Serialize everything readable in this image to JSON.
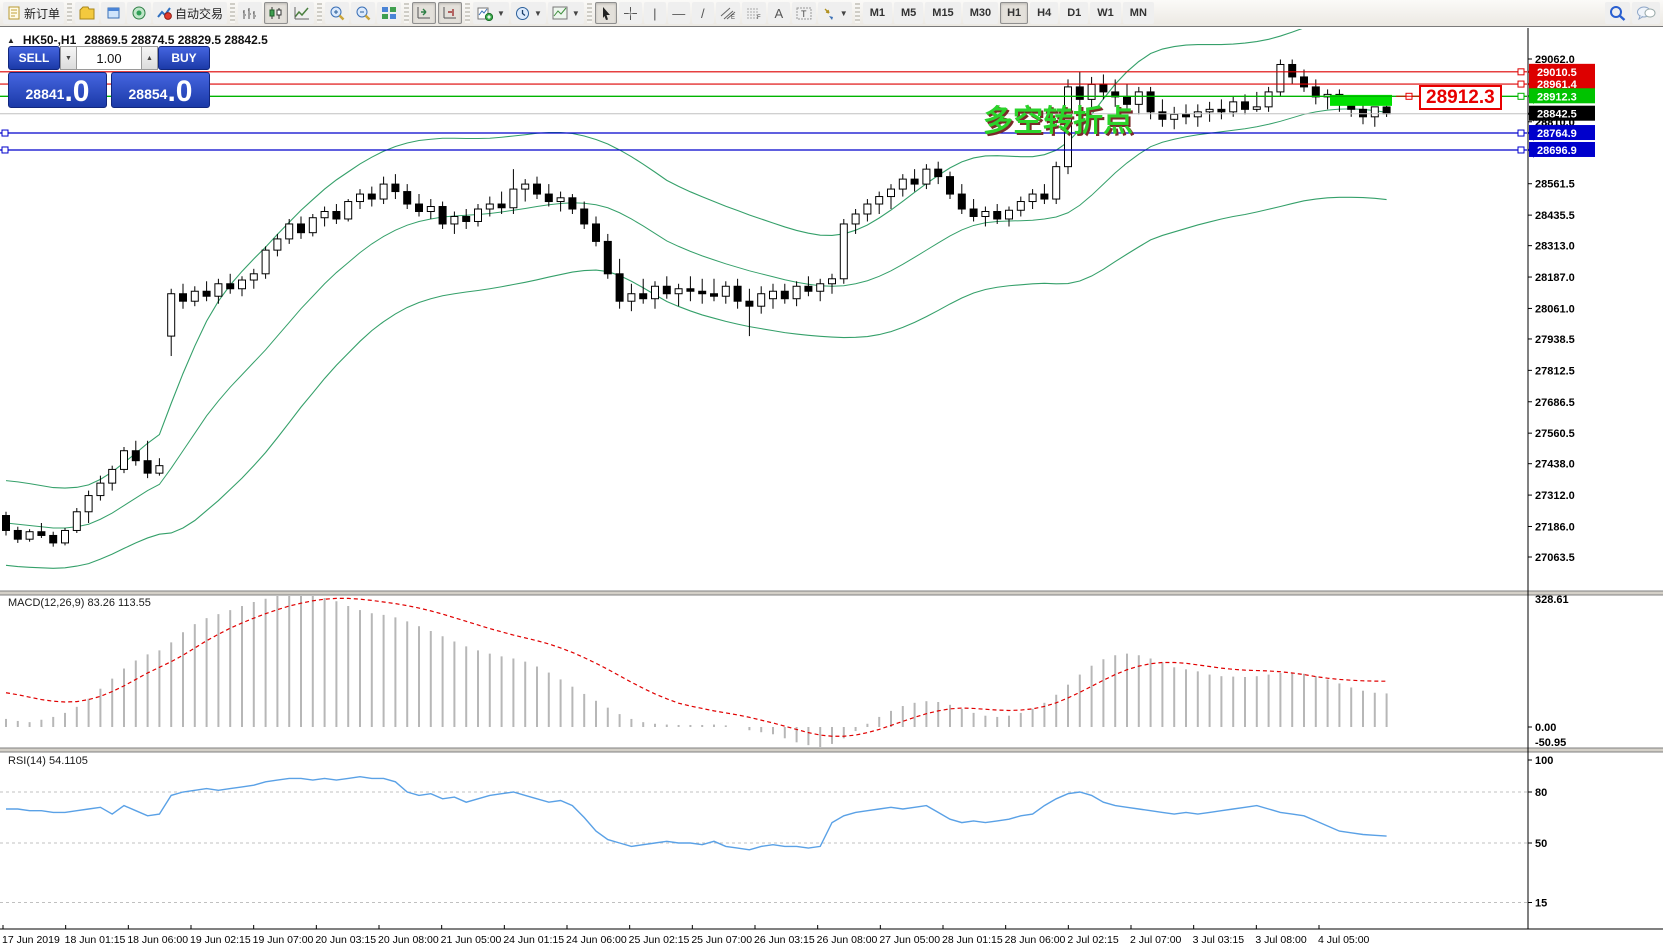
{
  "toolbar": {
    "new_order_label": "新订单",
    "auto_trading_label": "自动交易",
    "text_tool_label": "A",
    "label_tool_label": "T",
    "timeframes": [
      "M1",
      "M5",
      "M15",
      "M30",
      "H1",
      "H4",
      "D1",
      "W1",
      "MN"
    ],
    "active_timeframe": "H1"
  },
  "chart": {
    "collapse_arrow": "▲",
    "symbol_period": "HK50-,H1",
    "ohlc": "28869.5 28874.5 28829.5 28842.5"
  },
  "one_click": {
    "sell_label": "SELL",
    "buy_label": "BUY",
    "volume": "1.00",
    "sell_price_main": "28841",
    "sell_price_big": ".0",
    "buy_price_main": "28854",
    "buy_price_big": ".0"
  },
  "annotations": {
    "turning_point_text": "多空转折点",
    "price_callout": "28912.3"
  },
  "macd_panel": {
    "label": "MACD(12,26,9) 83.26 113.55",
    "axis_max": "328.61",
    "axis_zero": "0.00",
    "axis_min": "-50.95"
  },
  "rsi_panel": {
    "label": "RSI(14) 54.1105",
    "levels": [
      "100",
      "80",
      "50",
      "15"
    ],
    "level_values": [
      100,
      80,
      50,
      15
    ]
  },
  "price_axis": {
    "ticks": [
      29062.0,
      28810.0,
      28561.5,
      28435.5,
      28313.0,
      28187.0,
      28061.0,
      27938.5,
      27812.5,
      27686.5,
      27560.5,
      27438.0,
      27312.0,
      27186.0,
      27063.5
    ],
    "flags": [
      {
        "price": 29010.5,
        "label": "29010.5",
        "bg": "#dd0000"
      },
      {
        "price": 28961.4,
        "label": "28961.4",
        "bg": "#dd0000"
      },
      {
        "price": 28912.3,
        "label": "28912.3",
        "bg": "#00c300"
      },
      {
        "price": 28842.5,
        "label": "28842.5",
        "bg": "#000000"
      },
      {
        "price": 28764.9,
        "label": "28764.9",
        "bg": "#0000cc"
      },
      {
        "price": 28696.9,
        "label": "28696.9",
        "bg": "#0000cc"
      }
    ],
    "extra_tick": {
      "price": 28810.0,
      "label": "28810.0"
    }
  },
  "hlines": [
    {
      "price": 29010.5,
      "color": "#dd0000",
      "width": 1.2,
      "handles": "right"
    },
    {
      "price": 28961.4,
      "color": "#dd0000",
      "width": 1.2,
      "handles": "right"
    },
    {
      "price": 28912.3,
      "color": "#00b400",
      "width": 1.4,
      "handles": "right"
    },
    {
      "price": 28842.5,
      "color": "#c0c0c0",
      "width": 1,
      "handles": "none"
    },
    {
      "price": 28764.9,
      "color": "#0000cc",
      "width": 1.2,
      "handles": "both"
    },
    {
      "price": 28696.9,
      "color": "#0000cc",
      "width": 1.2,
      "handles": "both"
    }
  ],
  "time_axis": {
    "labels": [
      "17 Jun 2019",
      "18 Jun 01:15",
      "18 Jun 06:00",
      "19 Jun 02:15",
      "19 Jun 07:00",
      "20 Jun 03:15",
      "20 Jun 08:00",
      "21 Jun 05:00",
      "24 Jun 01:15",
      "24 Jun 06:00",
      "25 Jun 02:15",
      "25 Jun 07:00",
      "26 Jun 03:15",
      "26 Jun 08:00",
      "27 Jun 05:00",
      "28 Jun 01:15",
      "28 Jun 06:00",
      "2 Jul 02:15",
      "2 Jul 07:00",
      "3 Jul 03:15",
      "3 Jul 08:00",
      "4 Jul 05:00"
    ]
  },
  "chart_data": {
    "type": "candlestick",
    "symbol": "HK50-",
    "timeframe": "H1",
    "price_range": [
      27020,
      29180
    ],
    "candles": [
      [
        27230,
        27245,
        27150,
        27170
      ],
      [
        27170,
        27185,
        27120,
        27135
      ],
      [
        27135,
        27175,
        27125,
        27165
      ],
      [
        27165,
        27200,
        27140,
        27150
      ],
      [
        27150,
        27165,
        27105,
        27120
      ],
      [
        27120,
        27180,
        27110,
        27170
      ],
      [
        27170,
        27260,
        27160,
        27245
      ],
      [
        27245,
        27330,
        27200,
        27310
      ],
      [
        27310,
        27390,
        27290,
        27360
      ],
      [
        27360,
        27430,
        27330,
        27415
      ],
      [
        27415,
        27505,
        27400,
        27490
      ],
      [
        27490,
        27530,
        27430,
        27450
      ],
      [
        27450,
        27530,
        27380,
        27400
      ],
      [
        27400,
        27460,
        27390,
        27430
      ],
      [
        27950,
        28140,
        27870,
        28120
      ],
      [
        28120,
        28160,
        28060,
        28090
      ],
      [
        28090,
        28150,
        28070,
        28130
      ],
      [
        28130,
        28170,
        28090,
        28110
      ],
      [
        28110,
        28180,
        28080,
        28160
      ],
      [
        28160,
        28200,
        28120,
        28140
      ],
      [
        28140,
        28190,
        28110,
        28175
      ],
      [
        28175,
        28220,
        28140,
        28200
      ],
      [
        28200,
        28310,
        28180,
        28295
      ],
      [
        28295,
        28360,
        28270,
        28340
      ],
      [
        28340,
        28420,
        28320,
        28400
      ],
      [
        28400,
        28430,
        28340,
        28365
      ],
      [
        28365,
        28440,
        28350,
        28425
      ],
      [
        28425,
        28470,
        28390,
        28450
      ],
      [
        28450,
        28480,
        28400,
        28420
      ],
      [
        28420,
        28500,
        28410,
        28490
      ],
      [
        28490,
        28540,
        28460,
        28520
      ],
      [
        28520,
        28550,
        28470,
        28500
      ],
      [
        28500,
        28590,
        28480,
        28560
      ],
      [
        28560,
        28600,
        28500,
        28530
      ],
      [
        28530,
        28560,
        28460,
        28480
      ],
      [
        28480,
        28520,
        28430,
        28450
      ],
      [
        28450,
        28500,
        28420,
        28470
      ],
      [
        28470,
        28490,
        28380,
        28400
      ],
      [
        28400,
        28450,
        28360,
        28430
      ],
      [
        28430,
        28460,
        28380,
        28410
      ],
      [
        28410,
        28480,
        28390,
        28460
      ],
      [
        28460,
        28510,
        28430,
        28480
      ],
      [
        28480,
        28530,
        28440,
        28465
      ],
      [
        28465,
        28620,
        28440,
        28540
      ],
      [
        28540,
        28580,
        28490,
        28560
      ],
      [
        28560,
        28590,
        28500,
        28520
      ],
      [
        28520,
        28560,
        28470,
        28490
      ],
      [
        28490,
        28530,
        28450,
        28505
      ],
      [
        28505,
        28520,
        28440,
        28460
      ],
      [
        28460,
        28490,
        28380,
        28400
      ],
      [
        28400,
        28430,
        28310,
        28330
      ],
      [
        28330,
        28360,
        28180,
        28200
      ],
      [
        28200,
        28260,
        28060,
        28090
      ],
      [
        28090,
        28160,
        28050,
        28120
      ],
      [
        28120,
        28180,
        28080,
        28100
      ],
      [
        28100,
        28170,
        28060,
        28150
      ],
      [
        28150,
        28190,
        28100,
        28120
      ],
      [
        28120,
        28160,
        28070,
        28140
      ],
      [
        28140,
        28190,
        28090,
        28130
      ],
      [
        28130,
        28180,
        28080,
        28120
      ],
      [
        28120,
        28180,
        28090,
        28110
      ],
      [
        28110,
        28170,
        28080,
        28150
      ],
      [
        28150,
        28180,
        28060,
        28090
      ],
      [
        28090,
        28140,
        27950,
        28070
      ],
      [
        28070,
        28150,
        28040,
        28120
      ],
      [
        28100,
        28160,
        28060,
        28130
      ],
      [
        28130,
        28160,
        28080,
        28100
      ],
      [
        28100,
        28170,
        28070,
        28150
      ],
      [
        28150,
        28190,
        28110,
        28130
      ],
      [
        28130,
        28180,
        28090,
        28160
      ],
      [
        28160,
        28200,
        28120,
        28180
      ],
      [
        28180,
        28420,
        28160,
        28400
      ],
      [
        28400,
        28460,
        28360,
        28440
      ],
      [
        28440,
        28500,
        28410,
        28480
      ],
      [
        28480,
        28530,
        28440,
        28510
      ],
      [
        28510,
        28560,
        28460,
        28540
      ],
      [
        28540,
        28600,
        28510,
        28580
      ],
      [
        28580,
        28620,
        28530,
        28560
      ],
      [
        28560,
        28640,
        28540,
        28620
      ],
      [
        28620,
        28650,
        28560,
        28590
      ],
      [
        28590,
        28610,
        28500,
        28520
      ],
      [
        28520,
        28560,
        28440,
        28460
      ],
      [
        28460,
        28500,
        28410,
        28430
      ],
      [
        28430,
        28470,
        28390,
        28450
      ],
      [
        28450,
        28480,
        28400,
        28420
      ],
      [
        28420,
        28470,
        28390,
        28455
      ],
      [
        28455,
        28510,
        28430,
        28490
      ],
      [
        28490,
        28540,
        28460,
        28520
      ],
      [
        28520,
        28560,
        28480,
        28500
      ],
      [
        28500,
        28650,
        28480,
        28630
      ],
      [
        28630,
        28980,
        28600,
        28950
      ],
      [
        28950,
        29010,
        28850,
        28900
      ],
      [
        28900,
        28990,
        28860,
        28960
      ],
      [
        28960,
        29000,
        28900,
        28930
      ],
      [
        28930,
        28980,
        28870,
        28910
      ],
      [
        28910,
        28960,
        28850,
        28880
      ],
      [
        28880,
        28950,
        28840,
        28930
      ],
      [
        28930,
        28950,
        28820,
        28850
      ],
      [
        28850,
        28900,
        28790,
        28820
      ],
      [
        28820,
        28870,
        28780,
        28840
      ],
      [
        28840,
        28880,
        28800,
        28830
      ],
      [
        28830,
        28880,
        28790,
        28850
      ],
      [
        28850,
        28890,
        28810,
        28860
      ],
      [
        28860,
        28900,
        28820,
        28850
      ],
      [
        28850,
        28910,
        28830,
        28890
      ],
      [
        28890,
        28920,
        28840,
        28860
      ],
      [
        28860,
        28930,
        28850,
        28870
      ],
      [
        28870,
        28950,
        28850,
        28930
      ],
      [
        28930,
        29060,
        28910,
        29040
      ],
      [
        29040,
        29060,
        28960,
        28990
      ],
      [
        28990,
        29020,
        28930,
        28950
      ],
      [
        28950,
        28980,
        28880,
        28910
      ],
      [
        28910,
        28940,
        28860,
        28920
      ],
      [
        28920,
        28940,
        28850,
        28880
      ],
      [
        28880,
        28910,
        28830,
        28860
      ],
      [
        28860,
        28900,
        28800,
        28830
      ],
      [
        28830,
        28870,
        28790,
        28870
      ],
      [
        28869.5,
        28874.5,
        28829.5,
        28842.5
      ]
    ],
    "bb_mid": [
      27200,
      27195,
      27190,
      27185,
      27180,
      27180,
      27185,
      27195,
      27215,
      27240,
      27270,
      27300,
      27330,
      27355,
      27420,
      27490,
      27560,
      27630,
      27690,
      27745,
      27795,
      27845,
      27895,
      27950,
      28005,
      28060,
      28110,
      28160,
      28205,
      28245,
      28285,
      28320,
      28350,
      28375,
      28395,
      28410,
      28420,
      28428,
      28432,
      28435,
      28438,
      28442,
      28448,
      28455,
      28462,
      28470,
      28477,
      28482,
      28485,
      28483,
      28477,
      28465,
      28445,
      28420,
      28392,
      28362,
      28332,
      28310,
      28290,
      28272,
      28256,
      28240,
      28226,
      28212,
      28200,
      28188,
      28176,
      28166,
      28158,
      28152,
      28150,
      28152,
      28160,
      28172,
      28190,
      28212,
      28238,
      28266,
      28295,
      28324,
      28352,
      28376,
      28394,
      28405,
      28410,
      28412,
      28413,
      28415,
      28420,
      28428,
      28445,
      28475,
      28515,
      28560,
      28605,
      28645,
      28680,
      28710,
      28728,
      28740,
      28750,
      28758,
      28764,
      28770,
      28776,
      28782,
      28790,
      28800,
      28812,
      28826,
      28840,
      28850,
      28857,
      28861,
      28862,
      28860,
      28855,
      28848
    ],
    "bb_spread": [
      170,
      170,
      168,
      165,
      162,
      160,
      158,
      158,
      160,
      165,
      172,
      180,
      190,
      200,
      260,
      310,
      350,
      380,
      400,
      410,
      415,
      415,
      412,
      408,
      402,
      395,
      388,
      380,
      372,
      364,
      356,
      348,
      342,
      336,
      330,
      325,
      320,
      316,
      312,
      308,
      305,
      302,
      300,
      298,
      296,
      294,
      290,
      285,
      278,
      270,
      262,
      256,
      252,
      250,
      248,
      246,
      243,
      241,
      239,
      237,
      234,
      231,
      228,
      224,
      220,
      216,
      212,
      208,
      205,
      203,
      204,
      208,
      215,
      224,
      234,
      244,
      253,
      261,
      267,
      271,
      273,
      273,
      271,
      268,
      264,
      260,
      257,
      255,
      258,
      268,
      284,
      304,
      324,
      342,
      356,
      366,
      372,
      374,
      374,
      372,
      368,
      362,
      356,
      350,
      346,
      344,
      342,
      341,
      342,
      344,
      347,
      350,
      352,
      354,
      355,
      354,
      352,
      350
    ],
    "macd_hist": [
      20,
      15,
      12,
      18,
      25,
      35,
      50,
      70,
      95,
      120,
      145,
      165,
      180,
      190,
      210,
      235,
      255,
      270,
      280,
      290,
      300,
      310,
      318,
      325,
      328,
      329,
      326,
      320,
      312,
      300,
      290,
      282,
      278,
      272,
      262,
      250,
      238,
      225,
      212,
      200,
      190,
      182,
      175,
      170,
      162,
      150,
      135,
      118,
      100,
      82,
      65,
      48,
      32,
      20,
      12,
      8,
      6,
      5,
      5,
      5,
      6,
      4,
      0,
      -8,
      -13,
      -18,
      -28,
      -38,
      -45,
      -50,
      -42,
      -28,
      -10,
      8,
      25,
      40,
      52,
      60,
      64,
      62,
      55,
      45,
      35,
      28,
      25,
      28,
      35,
      45,
      60,
      80,
      105,
      130,
      152,
      168,
      178,
      182,
      178,
      170,
      160,
      148,
      143,
      138,
      130,
      126,
      125,
      124,
      126,
      130,
      134,
      135,
      132,
      126,
      118,
      108,
      98,
      90,
      85,
      83.26
    ],
    "macd_signal": [
      85,
      80,
      74,
      68,
      64,
      62,
      63,
      68,
      76,
      88,
      102,
      118,
      134,
      148,
      162,
      178,
      196,
      214,
      230,
      245,
      258,
      270,
      281,
      291,
      300,
      307,
      313,
      317,
      319,
      319,
      317,
      314,
      310,
      306,
      301,
      295,
      288,
      280,
      271,
      262,
      253,
      244,
      236,
      228,
      221,
      214,
      206,
      196,
      185,
      172,
      158,
      143,
      127,
      111,
      96,
      82,
      70,
      59,
      52,
      46,
      40,
      35,
      30,
      24,
      17,
      10,
      2,
      -6,
      -14,
      -20,
      -23,
      -23,
      -20,
      -14,
      -6,
      4,
      14,
      24,
      33,
      40,
      45,
      47,
      46,
      44,
      42,
      41,
      42,
      45,
      51,
      60,
      72,
      86,
      101,
      116,
      130,
      142,
      151,
      157,
      160,
      160,
      158,
      154,
      150,
      146,
      143,
      141,
      140,
      139,
      137,
      134,
      130,
      125,
      121,
      118,
      116,
      114.5,
      113.8,
      113.55
    ],
    "rsi": [
      70,
      70,
      69,
      69,
      68,
      68,
      69,
      70,
      71,
      67,
      72,
      69,
      66,
      67,
      78,
      80,
      81,
      82,
      81,
      82,
      83,
      84,
      86,
      87,
      88,
      88,
      87,
      88,
      87,
      88,
      89,
      88,
      88,
      86,
      80,
      78,
      79,
      76,
      77,
      74,
      76,
      78,
      79,
      80,
      78,
      76,
      74,
      75,
      72,
      65,
      57,
      52,
      50,
      48,
      49,
      50,
      51,
      50,
      50,
      49,
      51,
      48,
      47,
      46,
      48,
      49,
      48,
      48,
      47,
      48,
      62,
      66,
      68,
      69,
      70,
      71,
      70,
      71,
      72,
      68,
      64,
      62,
      63,
      62,
      63,
      64,
      66,
      67,
      72,
      76,
      79,
      80,
      78,
      74,
      72,
      71,
      70,
      69,
      68,
      67,
      68,
      67,
      68,
      69,
      70,
      71,
      72,
      70,
      68,
      67,
      66,
      63,
      60,
      57,
      56,
      55,
      54.5,
      54.11
    ],
    "highlight_box": {
      "price_top": 28918,
      "price_bottom": 28874
    },
    "colors": {
      "band": "#35a06a",
      "bull": "#ffffff",
      "bear": "#000000",
      "outline": "#000000",
      "macd_hist": "#b7b7b7",
      "macd_signal": "#e00000",
      "rsi_line": "#5aa1e6",
      "level_dash": "#c0c0c0",
      "highlight": "#00e000"
    }
  }
}
